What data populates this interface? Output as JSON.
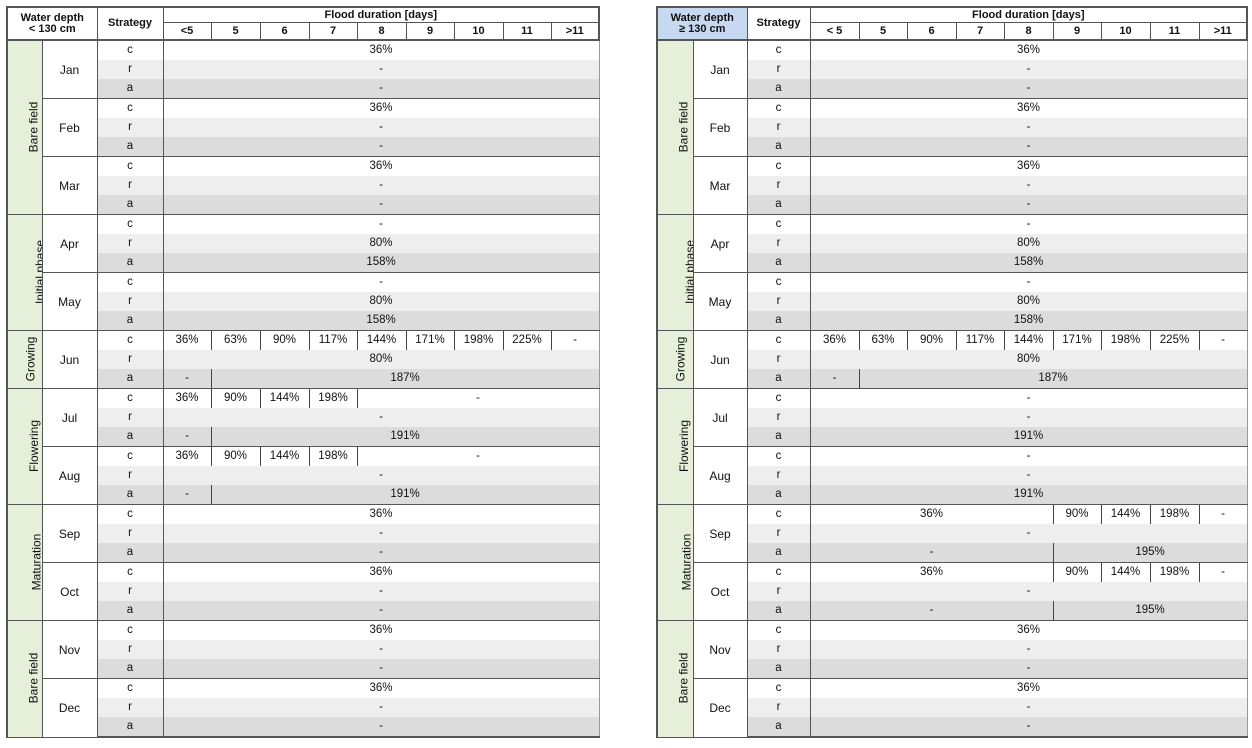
{
  "header": {
    "flood_duration": "Flood duration [days]",
    "strategy": "Strategy",
    "durations": [
      "<5",
      "5",
      "6",
      "7",
      "8",
      "9",
      "10",
      "11",
      ">11"
    ],
    "durations_right": [
      "< 5",
      "5",
      "6",
      "7",
      "8",
      "9",
      "10",
      "11",
      ">11"
    ]
  },
  "left": {
    "water_depth_line1": "Water depth",
    "water_depth_line2": "< 130 cm",
    "phases": [
      {
        "label": "Bare field",
        "months": [
          {
            "name": "Jan",
            "rows": [
              [
                {
                  "t": "36%",
                  "s": 9
                }
              ],
              [
                {
                  "t": "-",
                  "s": 9
                }
              ],
              [
                {
                  "t": "-",
                  "s": 9
                }
              ]
            ]
          },
          {
            "name": "Feb",
            "rows": [
              [
                {
                  "t": "36%",
                  "s": 9
                }
              ],
              [
                {
                  "t": "-",
                  "s": 9
                }
              ],
              [
                {
                  "t": "-",
                  "s": 9
                }
              ]
            ]
          },
          {
            "name": "Mar",
            "rows": [
              [
                {
                  "t": "36%",
                  "s": 9
                }
              ],
              [
                {
                  "t": "-",
                  "s": 9
                }
              ],
              [
                {
                  "t": "-",
                  "s": 9
                }
              ]
            ]
          }
        ]
      },
      {
        "label": "Initial phase",
        "months": [
          {
            "name": "Apr",
            "rows": [
              [
                {
                  "t": "-",
                  "s": 9
                }
              ],
              [
                {
                  "t": "80%",
                  "s": 9
                }
              ],
              [
                {
                  "t": "158%",
                  "s": 9
                }
              ]
            ]
          },
          {
            "name": "May",
            "rows": [
              [
                {
                  "t": "-",
                  "s": 9
                }
              ],
              [
                {
                  "t": "80%",
                  "s": 9
                }
              ],
              [
                {
                  "t": "158%",
                  "s": 9
                }
              ]
            ]
          }
        ]
      },
      {
        "label": "Growing",
        "months": [
          {
            "name": "Jun",
            "rows": [
              [
                {
                  "t": "36%",
                  "s": 1
                },
                {
                  "t": "63%",
                  "s": 1
                },
                {
                  "t": "90%",
                  "s": 1
                },
                {
                  "t": "117%",
                  "s": 1
                },
                {
                  "t": "144%",
                  "s": 1
                },
                {
                  "t": "171%",
                  "s": 1
                },
                {
                  "t": "198%",
                  "s": 1
                },
                {
                  "t": "225%",
                  "s": 1
                },
                {
                  "t": "-",
                  "s": 1
                }
              ],
              [
                {
                  "t": "80%",
                  "s": 9
                }
              ],
              [
                {
                  "t": "-",
                  "s": 1
                },
                {
                  "t": "187%",
                  "s": 8
                }
              ]
            ]
          }
        ]
      },
      {
        "label": "Flowering",
        "months": [
          {
            "name": "Jul",
            "rows": [
              [
                {
                  "t": "36%",
                  "s": 1
                },
                {
                  "t": "90%",
                  "s": 1
                },
                {
                  "t": "144%",
                  "s": 1
                },
                {
                  "t": "198%",
                  "s": 1
                },
                {
                  "t": "-",
                  "s": 5
                }
              ],
              [
                {
                  "t": "-",
                  "s": 9
                }
              ],
              [
                {
                  "t": "-",
                  "s": 1
                },
                {
                  "t": "191%",
                  "s": 8
                }
              ]
            ]
          },
          {
            "name": "Aug",
            "rows": [
              [
                {
                  "t": "36%",
                  "s": 1
                },
                {
                  "t": "90%",
                  "s": 1
                },
                {
                  "t": "144%",
                  "s": 1
                },
                {
                  "t": "198%",
                  "s": 1
                },
                {
                  "t": "-",
                  "s": 5
                }
              ],
              [
                {
                  "t": "-",
                  "s": 9
                }
              ],
              [
                {
                  "t": "-",
                  "s": 1
                },
                {
                  "t": "191%",
                  "s": 8
                }
              ]
            ]
          }
        ]
      },
      {
        "label": "Maturation",
        "months": [
          {
            "name": "Sep",
            "rows": [
              [
                {
                  "t": "36%",
                  "s": 9
                }
              ],
              [
                {
                  "t": "-",
                  "s": 9
                }
              ],
              [
                {
                  "t": "-",
                  "s": 9
                }
              ]
            ]
          },
          {
            "name": "Oct",
            "rows": [
              [
                {
                  "t": "36%",
                  "s": 9
                }
              ],
              [
                {
                  "t": "-",
                  "s": 9
                }
              ],
              [
                {
                  "t": "-",
                  "s": 9
                }
              ]
            ]
          }
        ]
      },
      {
        "label": "Bare field",
        "months": [
          {
            "name": "Nov",
            "rows": [
              [
                {
                  "t": "36%",
                  "s": 9
                }
              ],
              [
                {
                  "t": "-",
                  "s": 9
                }
              ],
              [
                {
                  "t": "-",
                  "s": 9
                }
              ]
            ]
          },
          {
            "name": "Dec",
            "rows": [
              [
                {
                  "t": "36%",
                  "s": 9
                }
              ],
              [
                {
                  "t": "-",
                  "s": 9
                }
              ],
              [
                {
                  "t": "-",
                  "s": 9
                }
              ]
            ]
          }
        ]
      }
    ]
  },
  "right": {
    "water_depth_line1": "Water depth",
    "water_depth_line2": "≥ 130 cm",
    "phases": [
      {
        "label": "Bare field",
        "months": [
          {
            "name": "Jan",
            "rows": [
              [
                {
                  "t": "36%",
                  "s": 9
                }
              ],
              [
                {
                  "t": "-",
                  "s": 9
                }
              ],
              [
                {
                  "t": "-",
                  "s": 9
                }
              ]
            ]
          },
          {
            "name": "Feb",
            "rows": [
              [
                {
                  "t": "36%",
                  "s": 9
                }
              ],
              [
                {
                  "t": "-",
                  "s": 9
                }
              ],
              [
                {
                  "t": "-",
                  "s": 9
                }
              ]
            ]
          },
          {
            "name": "Mar",
            "rows": [
              [
                {
                  "t": "36%",
                  "s": 9
                }
              ],
              [
                {
                  "t": "-",
                  "s": 9
                }
              ],
              [
                {
                  "t": "-",
                  "s": 9
                }
              ]
            ]
          }
        ]
      },
      {
        "label": "Initial phase",
        "months": [
          {
            "name": "Apr",
            "rows": [
              [
                {
                  "t": "-",
                  "s": 9
                }
              ],
              [
                {
                  "t": "80%",
                  "s": 9
                }
              ],
              [
                {
                  "t": "158%",
                  "s": 9
                }
              ]
            ]
          },
          {
            "name": "May",
            "rows": [
              [
                {
                  "t": "-",
                  "s": 9
                }
              ],
              [
                {
                  "t": "80%",
                  "s": 9
                }
              ],
              [
                {
                  "t": "158%",
                  "s": 9
                }
              ]
            ]
          }
        ]
      },
      {
        "label": "Growing",
        "months": [
          {
            "name": "Jun",
            "rows": [
              [
                {
                  "t": "36%",
                  "s": 1
                },
                {
                  "t": "63%",
                  "s": 1
                },
                {
                  "t": "90%",
                  "s": 1
                },
                {
                  "t": "117%",
                  "s": 1
                },
                {
                  "t": "144%",
                  "s": 1
                },
                {
                  "t": "171%",
                  "s": 1
                },
                {
                  "t": "198%",
                  "s": 1
                },
                {
                  "t": "225%",
                  "s": 1
                },
                {
                  "t": "-",
                  "s": 1
                }
              ],
              [
                {
                  "t": "80%",
                  "s": 9
                }
              ],
              [
                {
                  "t": "-",
                  "s": 1
                },
                {
                  "t": "187%",
                  "s": 8
                }
              ]
            ]
          }
        ]
      },
      {
        "label": "Flowering",
        "months": [
          {
            "name": "Jul",
            "rows": [
              [
                {
                  "t": "-",
                  "s": 9
                }
              ],
              [
                {
                  "t": "-",
                  "s": 9
                }
              ],
              [
                {
                  "t": "191%",
                  "s": 9
                }
              ]
            ]
          },
          {
            "name": "Aug",
            "rows": [
              [
                {
                  "t": "-",
                  "s": 9
                }
              ],
              [
                {
                  "t": "-",
                  "s": 9
                }
              ],
              [
                {
                  "t": "191%",
                  "s": 9
                }
              ]
            ]
          }
        ]
      },
      {
        "label": "Maturation",
        "months": [
          {
            "name": "Sep",
            "rows": [
              [
                {
                  "t": "36%",
                  "s": 5
                },
                {
                  "t": "90%",
                  "s": 1
                },
                {
                  "t": "144%",
                  "s": 1
                },
                {
                  "t": "198%",
                  "s": 1
                },
                {
                  "t": "-",
                  "s": 1
                }
              ],
              [
                {
                  "t": "-",
                  "s": 9
                }
              ],
              [
                {
                  "t": "-",
                  "s": 5
                },
                {
                  "t": "195%",
                  "s": 4
                }
              ]
            ]
          },
          {
            "name": "Oct",
            "rows": [
              [
                {
                  "t": "36%",
                  "s": 5
                },
                {
                  "t": "90%",
                  "s": 1
                },
                {
                  "t": "144%",
                  "s": 1
                },
                {
                  "t": "198%",
                  "s": 1
                },
                {
                  "t": "-",
                  "s": 1
                }
              ],
              [
                {
                  "t": "-",
                  "s": 9
                }
              ],
              [
                {
                  "t": "-",
                  "s": 5
                },
                {
                  "t": "195%",
                  "s": 4
                }
              ]
            ]
          }
        ]
      },
      {
        "label": "Bare field",
        "months": [
          {
            "name": "Nov",
            "rows": [
              [
                {
                  "t": "36%",
                  "s": 9
                }
              ],
              [
                {
                  "t": "-",
                  "s": 9
                }
              ],
              [
                {
                  "t": "-",
                  "s": 9
                }
              ]
            ]
          },
          {
            "name": "Dec",
            "rows": [
              [
                {
                  "t": "36%",
                  "s": 9
                }
              ],
              [
                {
                  "t": "-",
                  "s": 9
                }
              ],
              [
                {
                  "t": "-",
                  "s": 9
                }
              ]
            ]
          }
        ]
      }
    ]
  },
  "strategies": [
    "c",
    "r",
    "a"
  ]
}
